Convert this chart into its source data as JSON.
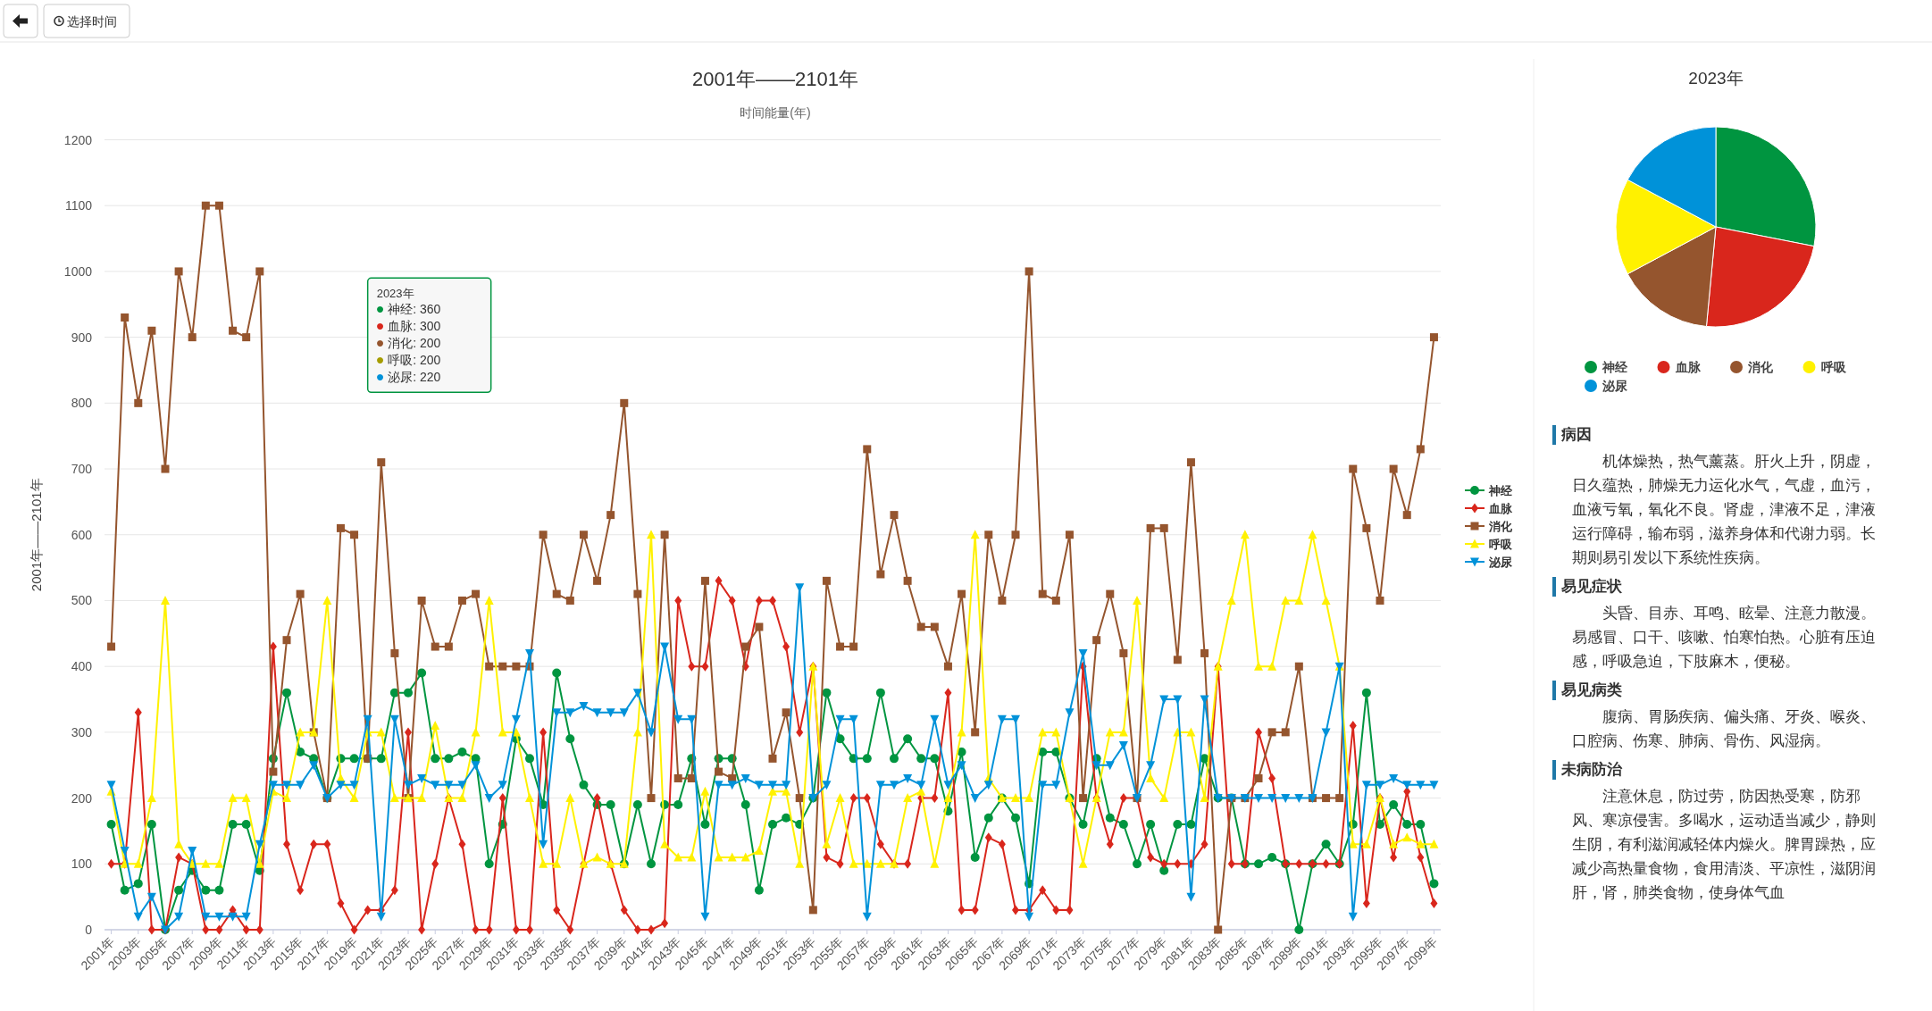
{
  "chart_data": [
    {
      "type": "line",
      "title": "2001年——2101年",
      "subtitle": "时间能量(年)",
      "ylabel": "2001年——2101年",
      "ylim": [
        0,
        1200
      ],
      "yticks": [
        0,
        100,
        200,
        300,
        400,
        500,
        600,
        700,
        800,
        900,
        1000,
        1100,
        1200
      ],
      "grid": "y",
      "legend": "right",
      "categories": [
        "2001年",
        null,
        "2003年",
        null,
        "2005年",
        null,
        "2007年",
        null,
        "2009年",
        null,
        "2011年",
        null,
        "2013年",
        null,
        "2015年",
        null,
        "2017年",
        null,
        "2019年",
        null,
        "2021年",
        null,
        "2023年",
        null,
        "2025年",
        null,
        "2027年",
        null,
        "2029年",
        null,
        "2031年",
        null,
        "2033年",
        null,
        "2035年",
        null,
        "2037年",
        null,
        "2039年",
        null,
        "2041年",
        null,
        "2043年",
        null,
        "2045年",
        null,
        "2047年",
        null,
        "2049年",
        null,
        "2051年",
        null,
        "2053年",
        null,
        "2055年",
        null,
        "2057年",
        null,
        "2059年",
        null,
        "2061年",
        null,
        "2063年",
        null,
        "2065年",
        null,
        "2067年",
        null,
        "2069年",
        null,
        "2071年",
        null,
        "2073年",
        null,
        "2075年",
        null,
        "2077年",
        null,
        "2079年",
        null,
        "2081年",
        null,
        "2083年",
        null,
        "2085年",
        null,
        "2087年",
        null,
        "2089年",
        null,
        "2091年",
        null,
        "2093年",
        null,
        "2095年",
        null,
        "2097年",
        null,
        "2099年"
      ],
      "series": [
        {
          "name": "神经",
          "color": "#009540",
          "marker": "circle",
          "values": [
            160,
            60,
            70,
            160,
            0,
            60,
            90,
            60,
            60,
            160,
            160,
            90,
            260,
            360,
            270,
            260,
            200,
            260,
            260,
            260,
            260,
            360,
            360,
            390,
            260,
            260,
            270,
            260,
            100,
            160,
            290,
            260,
            190,
            390,
            290,
            220,
            190,
            190,
            100,
            190,
            100,
            190,
            190,
            260,
            160,
            260,
            260,
            190,
            60,
            160,
            170,
            160,
            200,
            360,
            290,
            260,
            260,
            360,
            260,
            290,
            260,
            260,
            180,
            270,
            110,
            170,
            200,
            170,
            70,
            270,
            270,
            200,
            160,
            260,
            170,
            160,
            100,
            160,
            90,
            160,
            160,
            260,
            200,
            200,
            100,
            100,
            110,
            100,
            0,
            100,
            130,
            100,
            160,
            360,
            160,
            190,
            160,
            160,
            70
          ]
        },
        {
          "name": "血脉",
          "color": "#d9261c",
          "marker": "diamond",
          "values": [
            100,
            100,
            330,
            0,
            0,
            110,
            100,
            0,
            0,
            30,
            0,
            0,
            430,
            130,
            60,
            130,
            130,
            40,
            0,
            30,
            30,
            60,
            300,
            0,
            100,
            200,
            130,
            0,
            0,
            200,
            0,
            0,
            300,
            30,
            0,
            100,
            200,
            100,
            30,
            0,
            0,
            10,
            500,
            400,
            400,
            530,
            500,
            400,
            500,
            500,
            430,
            300,
            400,
            110,
            100,
            200,
            200,
            130,
            100,
            100,
            200,
            200,
            360,
            30,
            30,
            140,
            130,
            30,
            30,
            60,
            30,
            30,
            400,
            200,
            130,
            200,
            200,
            110,
            100,
            100,
            100,
            130,
            400,
            100,
            100,
            300,
            230,
            100,
            100,
            100,
            100,
            100,
            310,
            40,
            200,
            110,
            210,
            110,
            40
          ]
        },
        {
          "name": "消化",
          "color": "#95552e",
          "marker": "square",
          "values": [
            430,
            930,
            800,
            910,
            700,
            1000,
            900,
            1100,
            1100,
            910,
            900,
            1000,
            240,
            440,
            510,
            300,
            200,
            610,
            600,
            260,
            710,
            420,
            200,
            500,
            430,
            430,
            500,
            510,
            400,
            400,
            400,
            400,
            600,
            510,
            500,
            600,
            530,
            630,
            800,
            510,
            200,
            600,
            230,
            230,
            530,
            240,
            230,
            430,
            460,
            260,
            330,
            200,
            30,
            530,
            430,
            430,
            730,
            540,
            630,
            530,
            460,
            460,
            400,
            510,
            300,
            600,
            500,
            600,
            1000,
            510,
            500,
            600,
            200,
            440,
            510,
            420,
            200,
            610,
            610,
            410,
            710,
            420,
            0,
            200,
            200,
            230,
            300,
            300,
            400,
            200,
            200,
            200,
            700,
            610,
            500,
            700,
            630,
            730,
            900
          ]
        },
        {
          "name": "呼吸",
          "color": "#fff100",
          "marker": "triangle",
          "values": [
            210,
            100,
            100,
            200,
            500,
            130,
            100,
            100,
            100,
            200,
            200,
            100,
            210,
            200,
            300,
            300,
            500,
            230,
            200,
            300,
            300,
            200,
            200,
            200,
            310,
            200,
            200,
            300,
            500,
            300,
            300,
            200,
            100,
            100,
            200,
            100,
            110,
            100,
            100,
            300,
            600,
            130,
            110,
            110,
            210,
            110,
            110,
            110,
            120,
            210,
            210,
            100,
            400,
            130,
            200,
            100,
            100,
            100,
            100,
            200,
            210,
            100,
            200,
            300,
            600,
            230,
            200,
            200,
            200,
            300,
            300,
            200,
            100,
            200,
            300,
            300,
            500,
            230,
            200,
            300,
            300,
            200,
            400,
            500,
            600,
            400,
            400,
            500,
            500,
            600,
            500,
            400,
            130,
            130,
            200,
            130,
            140,
            130,
            130
          ]
        },
        {
          "name": "泌尿",
          "color": "#0092d9",
          "marker": "triangle-down",
          "values": [
            220,
            120,
            20,
            50,
            0,
            20,
            120,
            20,
            20,
            20,
            20,
            130,
            220,
            220,
            220,
            250,
            200,
            220,
            220,
            320,
            20,
            320,
            220,
            230,
            220,
            220,
            220,
            250,
            200,
            220,
            320,
            420,
            130,
            330,
            330,
            340,
            330,
            330,
            330,
            360,
            300,
            430,
            320,
            320,
            20,
            220,
            220,
            230,
            220,
            220,
            220,
            520,
            200,
            220,
            320,
            320,
            20,
            220,
            220,
            230,
            220,
            320,
            220,
            250,
            200,
            220,
            320,
            320,
            20,
            220,
            220,
            330,
            420,
            250,
            250,
            280,
            200,
            250,
            350,
            350,
            50,
            350,
            200,
            200,
            200,
            200,
            200,
            200,
            200,
            200,
            300,
            400,
            20,
            220,
            220,
            230,
            220,
            220,
            220
          ]
        }
      ],
      "annotations": [
        "2023年",
        "● 神经: 360",
        "● 血脉: 300",
        "● 消化: 200",
        "● 呼吸: 200",
        "● 泌尿: 220"
      ]
    },
    {
      "type": "pie",
      "title": "2023年",
      "legend": "bottom",
      "categories": [
        "神经",
        "血脉",
        "消化",
        "呼吸",
        "泌尿"
      ],
      "values": [
        28.1,
        23.4,
        15.7,
        15.6,
        17.2
      ],
      "colors": [
        "#009540",
        "#d9261c",
        "#95552e",
        "#fff100",
        "#0092d9"
      ]
    },
    {
      "type": "other",
      "annotations": [
        "病因",
        "机体燥热，热气薰蒸。肝火上升，阴虚，日久蕴热，肺燥无力运化水气，气虚，血污，血液亏氧，氧化不良。肾虚，津液不足，津液运行障碍，输布弱，滋养身体和代谢力弱。长期则易引发以下系统性疾病。",
        "易见症状",
        "头昏、目赤、耳鸣、眩晕、注意力散漫。易感冒、口干、咳嗽、怕寒怕热。心脏有压迫感，呼吸急迫，下肢麻木，便秘。",
        "易见病类",
        "腹病、胃肠疾病、偏头痛、牙炎、喉炎、口腔病、伤寒、肺病、骨伤、风湿病。",
        "未病防治",
        "注意休息，防过劳，防因热受寒，防邪风、寒凉侵害。多喝水，运动适当减少，静则生阴，有利滋润减轻体内燥火。脾胃躁热，应减少高热量食物，食用清淡、平凉性，滋阴润肝，肾，肺类食物，使身体气血"
      ]
    },
    {
      "type": "other",
      "annotations": [
        "选择时间"
      ]
    }
  ]
}
